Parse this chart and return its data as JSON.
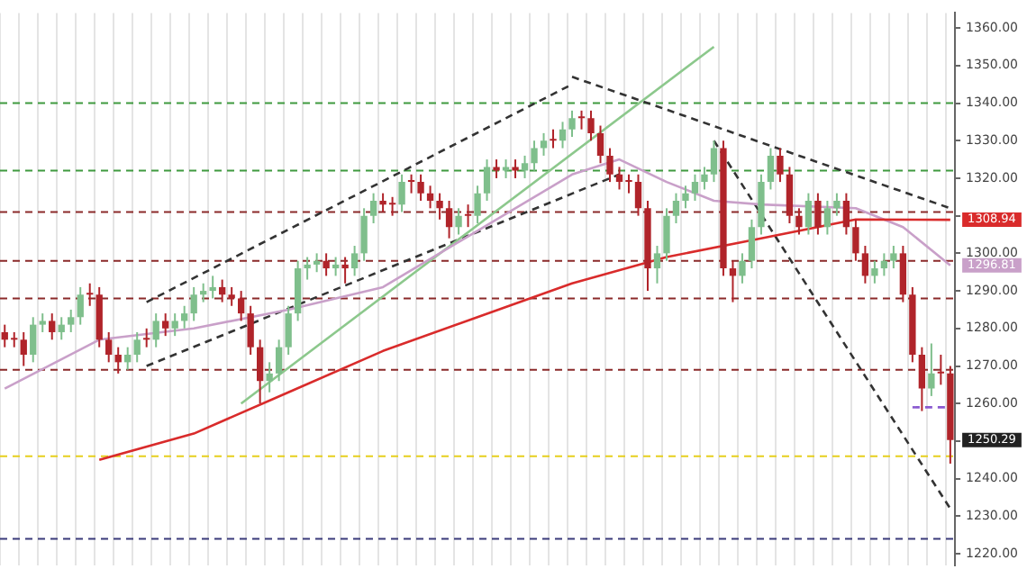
{
  "chart_data": {
    "type": "candlestick",
    "categories": [
      null,
      null,
      null,
      null,
      null,
      null,
      null,
      null,
      null,
      null,
      null,
      null,
      null,
      null,
      null,
      null,
      null,
      null,
      null,
      null,
      null,
      null,
      null,
      null,
      null,
      null,
      null,
      null,
      null,
      null,
      null,
      null,
      null,
      null,
      null,
      null,
      null,
      null,
      null,
      null,
      null,
      null,
      null,
      null,
      null,
      null,
      null,
      null,
      null,
      null,
      null,
      null,
      null,
      null,
      null,
      null,
      null,
      null,
      null,
      null,
      null,
      null,
      null,
      null,
      null,
      null,
      null,
      null,
      null,
      null,
      null,
      null,
      null,
      null,
      null,
      null,
      null,
      null,
      null,
      null,
      null,
      null,
      null,
      null,
      null,
      null,
      null,
      null,
      null,
      null,
      null,
      null,
      null,
      null,
      null,
      null,
      null,
      null,
      null,
      null,
      null
    ],
    "ohlc": [
      [
        1279,
        1281,
        1275,
        1277
      ],
      [
        1277,
        1279,
        1275,
        1277
      ],
      [
        1277,
        1279,
        1270,
        1273
      ],
      [
        1273,
        1283,
        1271,
        1281
      ],
      [
        1281,
        1284,
        1279,
        1282
      ],
      [
        1282,
        1284,
        1277,
        1279
      ],
      [
        1279,
        1283,
        1277,
        1281
      ],
      [
        1281,
        1285,
        1279,
        1283
      ],
      [
        1283,
        1291,
        1281,
        1289
      ],
      [
        1289,
        1292,
        1286,
        1289
      ],
      [
        1289,
        1291,
        1275,
        1277
      ],
      [
        1277,
        1279,
        1271,
        1273
      ],
      [
        1273,
        1275,
        1268,
        1271
      ],
      [
        1271,
        1275,
        1269,
        1273
      ],
      [
        1273,
        1279,
        1271,
        1277
      ],
      [
        1277,
        1280,
        1275,
        1277
      ],
      [
        1277,
        1284,
        1275,
        1282
      ],
      [
        1282,
        1284,
        1278,
        1280
      ],
      [
        1280,
        1284,
        1278,
        1282
      ],
      [
        1282,
        1286,
        1280,
        1284
      ],
      [
        1284,
        1291,
        1282,
        1289
      ],
      [
        1289,
        1292,
        1287,
        1290
      ],
      [
        1290,
        1294,
        1288,
        1291
      ],
      [
        1291,
        1293,
        1287,
        1289
      ],
      [
        1289,
        1291,
        1286,
        1288
      ],
      [
        1288,
        1290,
        1282,
        1284
      ],
      [
        1284,
        1286,
        1273,
        1275
      ],
      [
        1275,
        1277,
        1260,
        1266
      ],
      [
        1266,
        1271,
        1263,
        1268
      ],
      [
        1268,
        1277,
        1266,
        1275
      ],
      [
        1275,
        1286,
        1273,
        1284
      ],
      [
        1284,
        1298,
        1282,
        1296
      ],
      [
        1296,
        1299,
        1293,
        1297
      ],
      [
        1297,
        1300,
        1295,
        1298
      ],
      [
        1298,
        1300,
        1294,
        1296
      ],
      [
        1296,
        1299,
        1294,
        1297
      ],
      [
        1297,
        1299,
        1292,
        1296
      ],
      [
        1296,
        1302,
        1294,
        1300
      ],
      [
        1300,
        1312,
        1298,
        1310
      ],
      [
        1310,
        1316,
        1308,
        1314
      ],
      [
        1314,
        1316,
        1311,
        1313
      ],
      [
        1313,
        1315,
        1310,
        1313
      ],
      [
        1313,
        1321,
        1311,
        1319
      ],
      [
        1319,
        1321,
        1316,
        1319
      ],
      [
        1319,
        1321,
        1314,
        1316
      ],
      [
        1316,
        1318,
        1312,
        1314
      ],
      [
        1314,
        1316,
        1309,
        1312
      ],
      [
        1312,
        1314,
        1304,
        1307
      ],
      [
        1307,
        1312,
        1305,
        1310
      ],
      [
        1310,
        1313,
        1307,
        1310
      ],
      [
        1310,
        1318,
        1308,
        1316
      ],
      [
        1316,
        1325,
        1314,
        1323
      ],
      [
        1323,
        1325,
        1320,
        1322
      ],
      [
        1322,
        1325,
        1320,
        1323
      ],
      [
        1323,
        1325,
        1320,
        1322
      ],
      [
        1322,
        1326,
        1320,
        1324
      ],
      [
        1324,
        1330,
        1322,
        1328
      ],
      [
        1328,
        1332,
        1326,
        1330
      ],
      [
        1330,
        1333,
        1328,
        1330
      ],
      [
        1330,
        1335,
        1328,
        1333
      ],
      [
        1333,
        1338,
        1331,
        1336
      ],
      [
        1336,
        1338,
        1333,
        1336
      ],
      [
        1336,
        1338,
        1330,
        1332
      ],
      [
        1332,
        1334,
        1324,
        1326
      ],
      [
        1326,
        1328,
        1319,
        1321
      ],
      [
        1321,
        1323,
        1317,
        1319
      ],
      [
        1319,
        1321,
        1316,
        1319
      ],
      [
        1319,
        1321,
        1310,
        1312
      ],
      [
        1312,
        1314,
        1290,
        1296
      ],
      [
        1296,
        1302,
        1292,
        1300
      ],
      [
        1300,
        1312,
        1298,
        1310
      ],
      [
        1310,
        1316,
        1308,
        1314
      ],
      [
        1314,
        1318,
        1312,
        1316
      ],
      [
        1316,
        1321,
        1314,
        1319
      ],
      [
        1319,
        1323,
        1317,
        1321
      ],
      [
        1321,
        1330,
        1319,
        1328
      ],
      [
        1328,
        1330,
        1294,
        1296
      ],
      [
        1296,
        1298,
        1287,
        1294
      ],
      [
        1294,
        1300,
        1292,
        1298
      ],
      [
        1298,
        1309,
        1296,
        1307
      ],
      [
        1307,
        1321,
        1305,
        1319
      ],
      [
        1319,
        1328,
        1317,
        1326
      ],
      [
        1326,
        1328,
        1319,
        1321
      ],
      [
        1321,
        1323,
        1308,
        1310
      ],
      [
        1310,
        1312,
        1305,
        1307
      ],
      [
        1307,
        1316,
        1305,
        1314
      ],
      [
        1314,
        1316,
        1305,
        1307
      ],
      [
        1307,
        1314,
        1305,
        1312
      ],
      [
        1312,
        1316,
        1310,
        1314
      ],
      [
        1314,
        1316,
        1305,
        1307
      ],
      [
        1307,
        1309,
        1298,
        1300
      ],
      [
        1300,
        1302,
        1292,
        1294
      ],
      [
        1294,
        1298,
        1292,
        1296
      ],
      [
        1296,
        1300,
        1294,
        1298
      ],
      [
        1298,
        1302,
        1296,
        1300
      ],
      [
        1300,
        1302,
        1287,
        1289
      ],
      [
        1289,
        1291,
        1271,
        1273
      ],
      [
        1273,
        1275,
        1258,
        1264
      ],
      [
        1264,
        1276,
        1262,
        1268
      ],
      [
        1268,
        1273,
        1265,
        1268
      ],
      [
        1268,
        1270,
        1244,
        1250.29
      ]
    ],
    "value_labels": [
      null,
      null,
      null,
      null,
      null,
      null,
      null,
      null,
      null,
      null,
      null,
      null,
      null,
      null,
      null,
      null,
      null,
      null,
      null,
      null,
      null,
      null,
      null,
      null,
      null,
      null,
      null,
      null,
      null,
      null,
      null,
      null,
      null,
      null,
      null,
      null,
      null,
      null,
      null,
      null,
      null,
      null,
      null,
      null,
      null,
      null,
      null,
      null,
      null,
      null,
      null,
      null,
      null,
      null,
      null,
      null,
      null,
      null,
      null,
      null,
      null,
      null,
      null,
      null,
      null,
      null,
      null,
      null,
      null,
      null,
      null,
      null,
      null,
      null,
      null,
      null,
      null,
      null,
      null,
      null,
      null,
      null,
      null,
      null,
      null,
      null,
      null,
      null,
      null,
      null,
      null,
      null,
      null,
      null,
      null,
      null,
      null,
      null,
      null,
      null,
      "1250.29"
    ],
    "colors": [
      "#b0242a",
      "#b0242a",
      "#b0242a",
      "#7fbf8c",
      "#7fbf8c",
      "#b0242a",
      "#7fbf8c",
      "#7fbf8c",
      "#7fbf8c",
      "#b0242a",
      "#b0242a",
      "#b0242a",
      "#b0242a",
      "#7fbf8c",
      "#7fbf8c",
      "#b0242a",
      "#7fbf8c",
      "#b0242a",
      "#7fbf8c",
      "#7fbf8c",
      "#7fbf8c",
      "#7fbf8c",
      "#7fbf8c",
      "#b0242a",
      "#b0242a",
      "#b0242a",
      "#b0242a",
      "#b0242a",
      "#7fbf8c",
      "#7fbf8c",
      "#7fbf8c",
      "#7fbf8c",
      "#7fbf8c",
      "#7fbf8c",
      "#b0242a",
      "#7fbf8c",
      "#b0242a",
      "#7fbf8c",
      "#7fbf8c",
      "#7fbf8c",
      "#b0242a",
      "#b0242a",
      "#7fbf8c",
      "#b0242a",
      "#b0242a",
      "#b0242a",
      "#b0242a",
      "#b0242a",
      "#7fbf8c",
      "#b0242a",
      "#7fbf8c",
      "#7fbf8c",
      "#b0242a",
      "#7fbf8c",
      "#b0242a",
      "#7fbf8c",
      "#7fbf8c",
      "#7fbf8c",
      "#b0242a",
      "#7fbf8c",
      "#7fbf8c",
      "#b0242a",
      "#b0242a",
      "#b0242a",
      "#b0242a",
      "#b0242a",
      "#b0242a",
      "#b0242a",
      "#b0242a",
      "#7fbf8c",
      "#7fbf8c",
      "#7fbf8c",
      "#7fbf8c",
      "#7fbf8c",
      "#7fbf8c",
      "#7fbf8c",
      "#b0242a",
      "#b0242a",
      "#7fbf8c",
      "#7fbf8c",
      "#7fbf8c",
      "#7fbf8c",
      "#b0242a",
      "#b0242a",
      "#b0242a",
      "#7fbf8c",
      "#b0242a",
      "#7fbf8c",
      "#7fbf8c",
      "#b0242a",
      "#b0242a",
      "#b0242a",
      "#7fbf8c",
      "#7fbf8c",
      "#7fbf8c",
      "#b0242a",
      "#b0242a",
      "#b0242a",
      "#7fbf8c",
      "#b0242a",
      "#b0242a"
    ],
    "series": [
      {
        "type": "line",
        "color": "#d92b2b",
        "line_style": "solid",
        "values": [
          null,
          null,
          null,
          null,
          null,
          null,
          null,
          null,
          null,
          null,
          1245,
          null,
          null,
          null,
          null,
          null,
          null,
          null,
          null,
          null,
          1252,
          null,
          null,
          null,
          null,
          null,
          null,
          null,
          null,
          null,
          1263,
          null,
          null,
          null,
          null,
          null,
          null,
          null,
          null,
          null,
          1274,
          null,
          null,
          null,
          null,
          null,
          null,
          null,
          null,
          null,
          1283,
          null,
          null,
          null,
          null,
          null,
          null,
          null,
          null,
          null,
          1292,
          null,
          null,
          null,
          null,
          null,
          null,
          null,
          null,
          null,
          1299,
          null,
          null,
          null,
          null,
          null,
          null,
          null,
          null,
          null,
          1304,
          null,
          null,
          null,
          null,
          null,
          null,
          null,
          null,
          null,
          1309,
          null,
          null,
          null,
          null,
          null,
          null,
          null,
          null,
          null,
          1308.94
        ],
        "value_labels": [
          null,
          null,
          null,
          null,
          null,
          null,
          null,
          null,
          null,
          null,
          null,
          null,
          null,
          null,
          null,
          null,
          null,
          null,
          null,
          null,
          null,
          null,
          null,
          null,
          null,
          null,
          null,
          null,
          null,
          null,
          null,
          null,
          null,
          null,
          null,
          null,
          null,
          null,
          null,
          null,
          null,
          null,
          null,
          null,
          null,
          null,
          null,
          null,
          null,
          null,
          null,
          null,
          null,
          null,
          null,
          null,
          null,
          null,
          null,
          null,
          null,
          null,
          null,
          null,
          null,
          null,
          null,
          null,
          null,
          null,
          null,
          null,
          null,
          null,
          null,
          null,
          null,
          null,
          null,
          null,
          null,
          null,
          null,
          null,
          null,
          null,
          null,
          null,
          null,
          null,
          null,
          null,
          null,
          null,
          null,
          null,
          null,
          null,
          null,
          null,
          "1308.94"
        ]
      },
      {
        "type": "line",
        "color": "#c9a0c9",
        "line_style": "solid",
        "values": [
          1264,
          null,
          null,
          null,
          null,
          null,
          null,
          null,
          null,
          null,
          1277,
          null,
          null,
          null,
          null,
          null,
          null,
          null,
          null,
          null,
          1280,
          null,
          null,
          null,
          null,
          null,
          null,
          null,
          null,
          null,
          1285,
          null,
          null,
          null,
          null,
          null,
          null,
          null,
          null,
          null,
          1291,
          null,
          null,
          null,
          null,
          null,
          null,
          null,
          null,
          null,
          1306,
          null,
          null,
          null,
          null,
          null,
          null,
          null,
          null,
          null,
          1321,
          null,
          null,
          null,
          null,
          1325,
          null,
          null,
          null,
          null,
          1319,
          null,
          null,
          null,
          null,
          1314,
          null,
          null,
          null,
          null,
          1313,
          null,
          null,
          null,
          null,
          null,
          null,
          null,
          null,
          null,
          1312,
          null,
          null,
          null,
          null,
          1307,
          null,
          null,
          null,
          null,
          1296.81
        ],
        "value_labels": [
          null,
          null,
          null,
          null,
          null,
          null,
          null,
          null,
          null,
          null,
          null,
          null,
          null,
          null,
          null,
          null,
          null,
          null,
          null,
          null,
          null,
          null,
          null,
          null,
          null,
          null,
          null,
          null,
          null,
          null,
          null,
          null,
          null,
          null,
          null,
          null,
          null,
          null,
          null,
          null,
          null,
          null,
          null,
          null,
          null,
          null,
          null,
          null,
          null,
          null,
          null,
          null,
          null,
          null,
          null,
          null,
          null,
          null,
          null,
          null,
          null,
          null,
          null,
          null,
          null,
          null,
          null,
          null,
          null,
          null,
          null,
          null,
          null,
          null,
          null,
          null,
          null,
          null,
          null,
          null,
          null,
          null,
          null,
          null,
          null,
          null,
          null,
          null,
          null,
          null,
          null,
          null,
          null,
          null,
          null,
          null,
          null,
          null,
          null,
          null,
          "1296.81"
        ]
      },
      {
        "type": "line",
        "color": "#8cc88c",
        "line_style": "solid",
        "values": [
          null,
          null,
          null,
          null,
          null,
          null,
          null,
          null,
          null,
          null,
          null,
          null,
          null,
          null,
          null,
          null,
          null,
          null,
          null,
          null,
          null,
          null,
          null,
          null,
          null,
          1260,
          null,
          null,
          null,
          null,
          null,
          null,
          null,
          null,
          null,
          null,
          null,
          null,
          null,
          null,
          null,
          null,
          null,
          null,
          null,
          null,
          null,
          null,
          null,
          null,
          null,
          null,
          null,
          null,
          null,
          null,
          null,
          null,
          null,
          null,
          null,
          null,
          null,
          null,
          null,
          null,
          null,
          null,
          null,
          null,
          null,
          null,
          null,
          null,
          null,
          1355,
          null,
          null,
          null,
          null,
          null,
          null,
          null,
          null,
          null,
          null,
          null,
          null,
          null,
          null,
          null,
          null,
          null,
          null,
          null,
          null,
          null,
          null,
          null,
          null,
          null
        ]
      },
      {
        "type": "line",
        "color": "#333333",
        "line_style": "dashed",
        "values": [
          null,
          null,
          null,
          null,
          null,
          null,
          null,
          null,
          null,
          null,
          null,
          null,
          null,
          null,
          null,
          1287,
          null,
          null,
          null,
          null,
          null,
          null,
          null,
          null,
          null,
          null,
          null,
          null,
          null,
          null,
          null,
          null,
          null,
          null,
          null,
          null,
          null,
          null,
          null,
          null,
          null,
          null,
          null,
          null,
          null,
          null,
          null,
          null,
          null,
          null,
          null,
          null,
          null,
          null,
          null,
          null,
          null,
          null,
          null,
          null,
          1345,
          null,
          null,
          null,
          null,
          null,
          null,
          null,
          null,
          null,
          null,
          null,
          null,
          null,
          null,
          null,
          null,
          null,
          null,
          null,
          null,
          null,
          null,
          null,
          null,
          null,
          null,
          null,
          null,
          null,
          null,
          null,
          null,
          null,
          null,
          null,
          null,
          null,
          null,
          null,
          null
        ]
      },
      {
        "type": "line",
        "color": "#333333",
        "line_style": "dashed",
        "values": [
          null,
          null,
          null,
          null,
          null,
          null,
          null,
          null,
          null,
          null,
          null,
          null,
          null,
          null,
          null,
          1270,
          null,
          null,
          null,
          null,
          null,
          null,
          null,
          null,
          null,
          null,
          null,
          null,
          null,
          null,
          null,
          null,
          null,
          null,
          null,
          null,
          null,
          null,
          null,
          null,
          null,
          null,
          null,
          null,
          null,
          null,
          null,
          null,
          null,
          null,
          null,
          null,
          null,
          null,
          null,
          null,
          null,
          null,
          null,
          null,
          null,
          null,
          null,
          null,
          null,
          1321,
          null,
          null,
          null,
          null,
          null,
          null,
          null,
          null,
          null,
          null,
          null,
          null,
          null,
          null,
          null,
          null,
          null,
          null,
          null,
          null,
          null,
          null,
          null,
          null,
          null,
          null,
          null,
          null,
          null,
          null,
          null,
          null,
          null,
          null,
          null
        ]
      },
      {
        "type": "line",
        "color": "#333333",
        "line_style": "dashed",
        "values": [
          null,
          null,
          null,
          null,
          null,
          null,
          null,
          null,
          null,
          null,
          null,
          null,
          null,
          null,
          null,
          null,
          null,
          null,
          null,
          null,
          null,
          null,
          null,
          null,
          null,
          null,
          null,
          null,
          null,
          null,
          null,
          null,
          null,
          null,
          null,
          null,
          null,
          null,
          null,
          null,
          null,
          null,
          null,
          null,
          null,
          null,
          null,
          null,
          null,
          null,
          null,
          null,
          null,
          null,
          null,
          null,
          null,
          null,
          null,
          null,
          1347,
          null,
          null,
          null,
          null,
          null,
          null,
          null,
          null,
          null,
          null,
          null,
          null,
          null,
          null,
          null,
          null,
          null,
          null,
          null,
          null,
          null,
          null,
          null,
          null,
          null,
          null,
          null,
          null,
          null,
          null,
          null,
          null,
          null,
          null,
          null,
          null,
          null,
          null,
          null,
          1312
        ]
      },
      {
        "type": "line",
        "color": "#333333",
        "line_style": "dashed",
        "values": [
          null,
          null,
          null,
          null,
          null,
          null,
          null,
          null,
          null,
          null,
          null,
          null,
          null,
          null,
          null,
          null,
          null,
          null,
          null,
          null,
          null,
          null,
          null,
          null,
          null,
          null,
          null,
          null,
          null,
          null,
          null,
          null,
          null,
          null,
          null,
          null,
          null,
          null,
          null,
          null,
          null,
          null,
          null,
          null,
          null,
          null,
          null,
          null,
          null,
          null,
          null,
          null,
          null,
          null,
          null,
          null,
          null,
          null,
          null,
          null,
          null,
          null,
          null,
          null,
          null,
          null,
          null,
          null,
          null,
          null,
          null,
          null,
          null,
          null,
          null,
          1330,
          null,
          null,
          null,
          null,
          null,
          null,
          null,
          null,
          null,
          null,
          null,
          null,
          null,
          null,
          null,
          null,
          null,
          null,
          null,
          null,
          null,
          null,
          null,
          null,
          1232
        ]
      },
      {
        "type": "line",
        "color": "#8a5ad0",
        "line_style": "dashed",
        "values": [
          null,
          null,
          null,
          null,
          null,
          null,
          null,
          null,
          null,
          null,
          null,
          null,
          null,
          null,
          null,
          null,
          null,
          null,
          null,
          null,
          null,
          null,
          null,
          null,
          null,
          null,
          null,
          null,
          null,
          null,
          null,
          null,
          null,
          null,
          null,
          null,
          null,
          null,
          null,
          null,
          null,
          null,
          null,
          null,
          null,
          null,
          null,
          null,
          null,
          null,
          null,
          null,
          null,
          null,
          null,
          null,
          null,
          null,
          null,
          null,
          null,
          null,
          null,
          null,
          null,
          null,
          null,
          null,
          null,
          null,
          null,
          null,
          null,
          null,
          null,
          null,
          null,
          null,
          null,
          null,
          null,
          null,
          null,
          null,
          null,
          null,
          null,
          null,
          null,
          null,
          null,
          null,
          null,
          null,
          null,
          null,
          1259,
          null,
          null,
          null,
          1259
        ]
      }
    ],
    "ref_lines": [
      {
        "axis": "y",
        "value": 1340,
        "color": "#3f9a3f",
        "line_style": "dashed"
      },
      {
        "axis": "y",
        "value": 1322,
        "color": "#3f9a3f",
        "line_style": "dashed"
      },
      {
        "axis": "y",
        "value": 1311,
        "color": "#8b2a2a",
        "line_style": "dashed"
      },
      {
        "axis": "y",
        "value": 1298,
        "color": "#8b2a2a",
        "line_style": "dashed"
      },
      {
        "axis": "y",
        "value": 1288,
        "color": "#8b2a2a",
        "line_style": "dashed"
      },
      {
        "axis": "y",
        "value": 1269,
        "color": "#8b2a2a",
        "line_style": "dashed"
      },
      {
        "axis": "y",
        "value": 1246,
        "color": "#e6cf1e",
        "line_style": "dashed"
      },
      {
        "axis": "y",
        "value": 1224,
        "color": "#3a3a7a",
        "line_style": "dashed"
      }
    ],
    "ylim": [
      1217,
      1364
    ],
    "yticks": [
      {
        "value": 1220,
        "label": "1220.00"
      },
      {
        "value": 1230,
        "label": "1230.00"
      },
      {
        "value": 1240,
        "label": "1240.00"
      },
      {
        "value": 1250,
        "label": null
      },
      {
        "value": 1260,
        "label": "1260.00"
      },
      {
        "value": 1270,
        "label": "1270.00"
      },
      {
        "value": 1280,
        "label": "1280.00"
      },
      {
        "value": 1290,
        "label": "1290.00"
      },
      {
        "value": 1300,
        "label": "1300.00"
      },
      {
        "value": 1310,
        "label": null
      },
      {
        "value": 1320,
        "label": "1320.00"
      },
      {
        "value": 1330,
        "label": "1330.00"
      },
      {
        "value": 1340,
        "label": "1340.00"
      },
      {
        "value": 1350,
        "label": "1350.00"
      },
      {
        "value": 1360,
        "label": "1360.00"
      }
    ],
    "grid": "x",
    "tick_labels": "y"
  }
}
